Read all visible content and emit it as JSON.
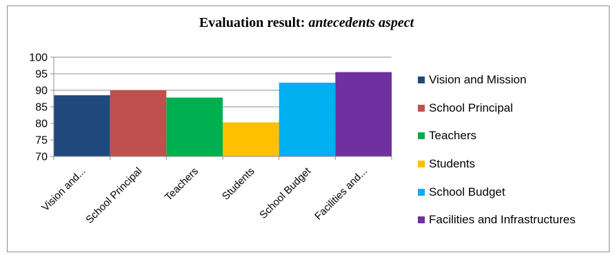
{
  "title": {
    "prefix": "Evaluation result:",
    "italic": "antecedents aspect"
  },
  "chart_data": {
    "type": "bar",
    "categories": [
      "Vision and...",
      "School Principal",
      "Teachers",
      "Students",
      "School Budget",
      "Facilities and..."
    ],
    "series": [
      {
        "name": "Vision and Mission",
        "value": 88.5,
        "color": "#1f497d"
      },
      {
        "name": "School Principal",
        "value": 90.0,
        "color": "#c0504d"
      },
      {
        "name": "Teachers",
        "value": 87.8,
        "color": "#00b050"
      },
      {
        "name": "Students",
        "value": 80.3,
        "color": "#ffc000"
      },
      {
        "name": "School Budget",
        "value": 92.3,
        "color": "#00b0f0"
      },
      {
        "name": "Facilities and Infrastructures",
        "value": 95.5,
        "color": "#7030a0"
      }
    ],
    "ylim": [
      70,
      100
    ],
    "yticks": [
      70,
      75,
      80,
      85,
      90,
      95,
      100
    ],
    "grid": true,
    "legend_position": "right"
  }
}
